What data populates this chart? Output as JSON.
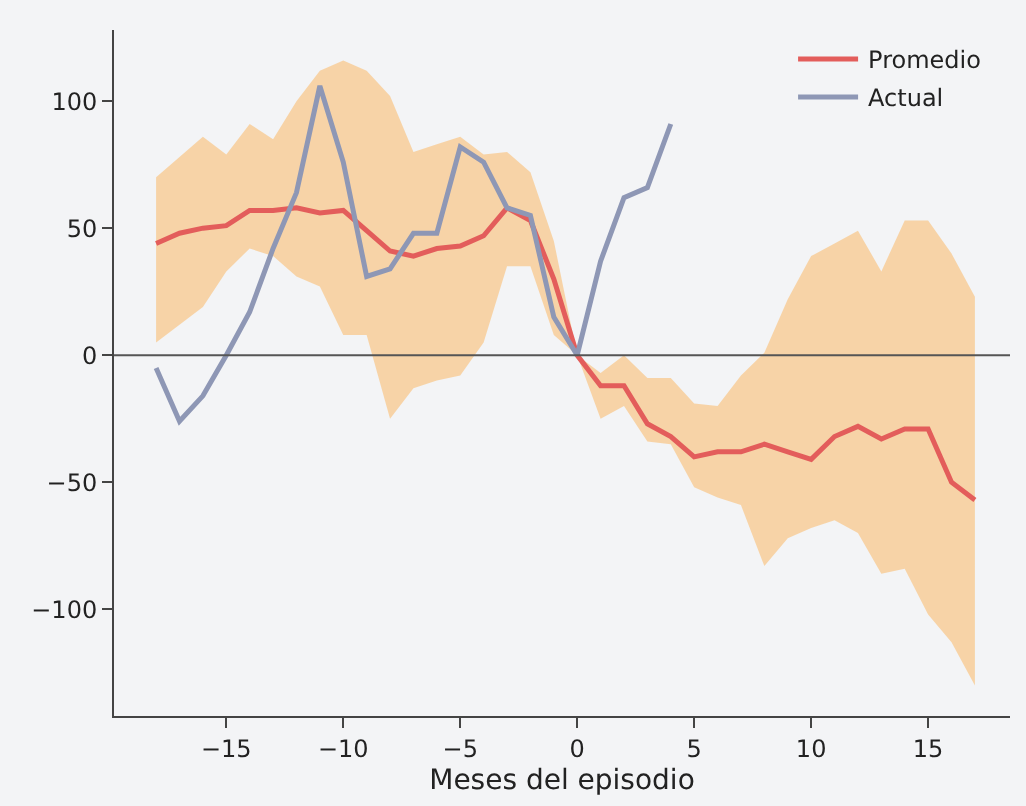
{
  "chart_data": {
    "type": "line",
    "xlabel": "Meses del episodio",
    "x": [
      -18,
      -17,
      -16,
      -15,
      -14,
      -13,
      -12,
      -11,
      -10,
      -9,
      -8,
      -7,
      -6,
      -5,
      -4,
      -3,
      -2,
      -1,
      0,
      1,
      2,
      3,
      4,
      5,
      6,
      7,
      8,
      9,
      10,
      11,
      12,
      13,
      14,
      15,
      16,
      17
    ],
    "series": [
      {
        "name": "Promedio",
        "color": "#e35d5b",
        "values": [
          44,
          48,
          50,
          51,
          57,
          57,
          58,
          56,
          57,
          49,
          41,
          39,
          42,
          43,
          47,
          58,
          53,
          30,
          0,
          -12,
          -12,
          -27,
          -32,
          -40,
          -38,
          -38,
          -35,
          -38,
          -41,
          -32,
          -28,
          -33,
          -29,
          -29,
          -50,
          -57
        ],
        "lower": [
          5,
          12,
          19,
          33,
          42,
          39,
          31,
          27,
          8,
          8,
          -25,
          -13,
          -10,
          -8,
          5,
          35,
          35,
          8,
          0,
          -25,
          -20,
          -34,
          -35,
          -52,
          -56,
          -59,
          -83,
          -72,
          -68,
          -65,
          -70,
          -86,
          -84,
          -102,
          -113,
          -130
        ],
        "upper": [
          70,
          78,
          86,
          79,
          91,
          85,
          100,
          112,
          116,
          112,
          102,
          80,
          83,
          86,
          79,
          80,
          72,
          45,
          0,
          -7,
          0,
          -9,
          -9,
          -19,
          -20,
          -8,
          1,
          22,
          39,
          44,
          49,
          33,
          53,
          53,
          40,
          23
        ]
      },
      {
        "name": "Actual",
        "color": "#8e97b5",
        "x": [
          -18,
          -17,
          -16,
          -15,
          -14,
          -13,
          -12,
          -11,
          -10,
          -9,
          -8,
          -7,
          -6,
          -5,
          -4,
          -3,
          -2,
          -1,
          0,
          1,
          2,
          3,
          4
        ],
        "values": [
          -5,
          -26,
          -16,
          0,
          17,
          42,
          64,
          106,
          76,
          31,
          34,
          48,
          48,
          82,
          76,
          58,
          55,
          15,
          0,
          37,
          62,
          66,
          91
        ]
      }
    ],
    "xlim": [
      -19.8,
      18.5
    ],
    "ylim": [
      -142,
      128
    ],
    "xticks": [
      -15,
      -10,
      -5,
      0,
      5,
      10,
      15
    ],
    "yticks": [
      -100,
      -50,
      0,
      50,
      100
    ],
    "ref_lines": [
      {
        "axis": "y",
        "value": 0,
        "color": "#555555"
      }
    ],
    "grid": false,
    "legend": "top right",
    "marker": "none",
    "line_style": "solid"
  }
}
